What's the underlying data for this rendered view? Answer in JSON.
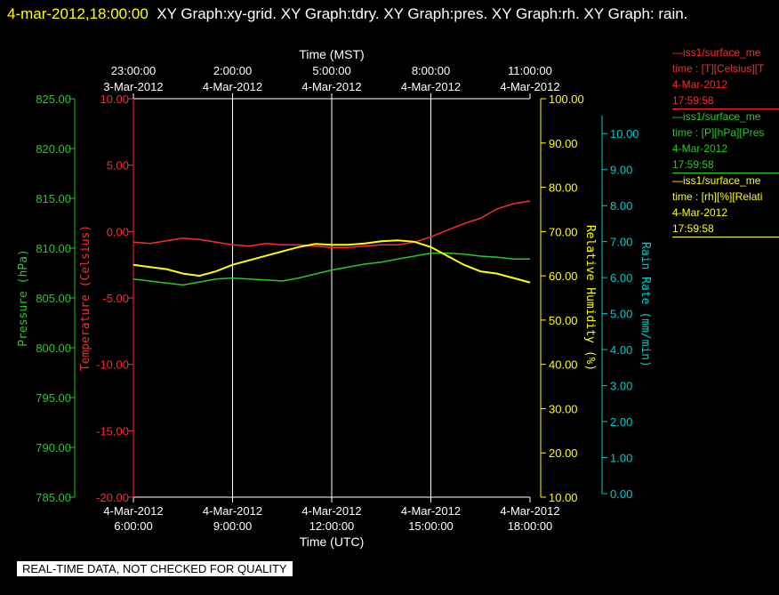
{
  "header": {
    "timestamp": "4-mar-2012,18:00:00",
    "graphs": "XY Graph:xy-grid.  XY Graph:tdry.  XY Graph:pres.  XY Graph:rh.  XY Graph: rain."
  },
  "footer": {
    "note": "REAL-TIME DATA, NOT CHECKED FOR QUALITY"
  },
  "colors": {
    "temperature": "#ff2a2a",
    "pressure": "#22cc22",
    "humidity": "#ffff00",
    "rain": "#00cccc",
    "grid": "#ffffff"
  },
  "legend": [
    {
      "name": "—iss1/surface_me",
      "line2": "time : [T][Celsius][T",
      "date": "4-Mar-2012",
      "time": "17:59:58",
      "color": "#ff2a2a"
    },
    {
      "name": "—iss1/surface_me",
      "line2": "time : [P][hPa][Pres",
      "date": "4-Mar-2012",
      "time": "17:59:58",
      "color": "#22cc22"
    },
    {
      "name": "—iss1/surface_me",
      "line2": "time : [rh][%][Relati",
      "date": "4-Mar-2012",
      "time": "17:59:58",
      "color": "#ffff00"
    }
  ],
  "chart_data": {
    "type": "line",
    "top_axis_title": "Time (MST)",
    "bottom_axis_title": "Time (UTC)",
    "x_range_hours_utc": [
      6,
      18
    ],
    "bottom_ticks": [
      {
        "t": 6,
        "line1": "4-Mar-2012",
        "line2": "6:00:00"
      },
      {
        "t": 9,
        "line1": "4-Mar-2012",
        "line2": "9:00:00"
      },
      {
        "t": 12,
        "line1": "4-Mar-2012",
        "line2": "12:00:00"
      },
      {
        "t": 15,
        "line1": "4-Mar-2012",
        "line2": "15:00:00"
      },
      {
        "t": 18,
        "line1": "4-Mar-2012",
        "line2": "18:00:00"
      }
    ],
    "top_ticks": [
      {
        "t": 6,
        "line1": "23:00:00",
        "line2": "3-Mar-2012"
      },
      {
        "t": 9,
        "line1": "2:00:00",
        "line2": "4-Mar-2012"
      },
      {
        "t": 12,
        "line1": "5:00:00",
        "line2": "4-Mar-2012"
      },
      {
        "t": 15,
        "line1": "8:00:00",
        "line2": "4-Mar-2012"
      },
      {
        "t": 18,
        "line1": "11:00:00",
        "line2": "4-Mar-2012"
      }
    ],
    "grid_vertical": true,
    "axes": {
      "pressure": {
        "label": "Pressure (hPa)",
        "range": [
          785,
          825
        ],
        "ticks": [
          "785.00",
          "790.00",
          "795.00",
          "800.00",
          "805.00",
          "810.00",
          "815.00",
          "820.00",
          "825.00"
        ]
      },
      "temperature": {
        "label": "Temperature (Celsius)",
        "range": [
          -20,
          10
        ],
        "ticks": [
          "-20.00",
          "-15.00",
          "-10.00",
          "-5.00",
          "0.00",
          "5.00",
          "10.00"
        ]
      },
      "humidity": {
        "label": "Relative Humidity (%)",
        "range": [
          10,
          100
        ],
        "ticks": [
          "10.00",
          "20.00",
          "30.00",
          "40.00",
          "50.00",
          "60.00",
          "70.00",
          "80.00",
          "90.00",
          "100.00"
        ]
      },
      "rain": {
        "label": "Rain Rate (mm/min)",
        "range": [
          0,
          10.5
        ],
        "ticks": [
          "0.00",
          "1.00",
          "2.00",
          "3.00",
          "4.00",
          "5.00",
          "6.00",
          "7.00",
          "8.00",
          "9.00",
          "10.00"
        ]
      }
    },
    "series": [
      {
        "key": "temperature",
        "axis": "temperature",
        "x": [
          6,
          6.5,
          7,
          7.5,
          8,
          8.5,
          9,
          9.5,
          10,
          10.5,
          11,
          11.5,
          12,
          12.5,
          13,
          13.5,
          14,
          14.5,
          15,
          15.5,
          16,
          16.5,
          17,
          17.5,
          18
        ],
        "y": [
          -0.8,
          -0.9,
          -0.7,
          -0.5,
          -0.6,
          -0.8,
          -1.0,
          -1.1,
          -0.9,
          -1.0,
          -1.0,
          -1.1,
          -1.2,
          -1.2,
          -1.1,
          -1.0,
          -1.0,
          -0.8,
          -0.4,
          0.1,
          0.6,
          1.0,
          1.7,
          2.1,
          2.3
        ]
      },
      {
        "key": "pressure",
        "axis": "pressure",
        "x": [
          6,
          6.5,
          7,
          7.5,
          8,
          8.5,
          9,
          9.5,
          10,
          10.5,
          11,
          11.5,
          12,
          12.5,
          13,
          13.5,
          14,
          14.5,
          15,
          15.5,
          16,
          16.5,
          17,
          17.5,
          18
        ],
        "y": [
          806.9,
          806.7,
          806.5,
          806.3,
          806.6,
          806.9,
          807.0,
          806.9,
          806.8,
          806.7,
          807.0,
          807.4,
          807.8,
          808.1,
          808.4,
          808.6,
          808.9,
          809.2,
          809.5,
          809.5,
          809.4,
          809.2,
          809.1,
          808.9,
          808.9
        ]
      },
      {
        "key": "humidity",
        "axis": "humidity",
        "x": [
          6,
          6.5,
          7,
          7.5,
          8,
          8.5,
          9,
          9.5,
          10,
          10.5,
          11,
          11.5,
          12,
          12.5,
          13,
          13.5,
          14,
          14.5,
          15,
          15.5,
          16,
          16.5,
          17,
          17.5,
          18
        ],
        "y": [
          62.5,
          62.0,
          61.5,
          60.5,
          60.0,
          61.0,
          62.5,
          63.5,
          64.5,
          65.5,
          66.5,
          67.2,
          67.0,
          67.0,
          67.3,
          67.8,
          68.0,
          67.7,
          66.5,
          64.5,
          62.5,
          61.0,
          60.5,
          59.5,
          58.5
        ]
      }
    ]
  }
}
